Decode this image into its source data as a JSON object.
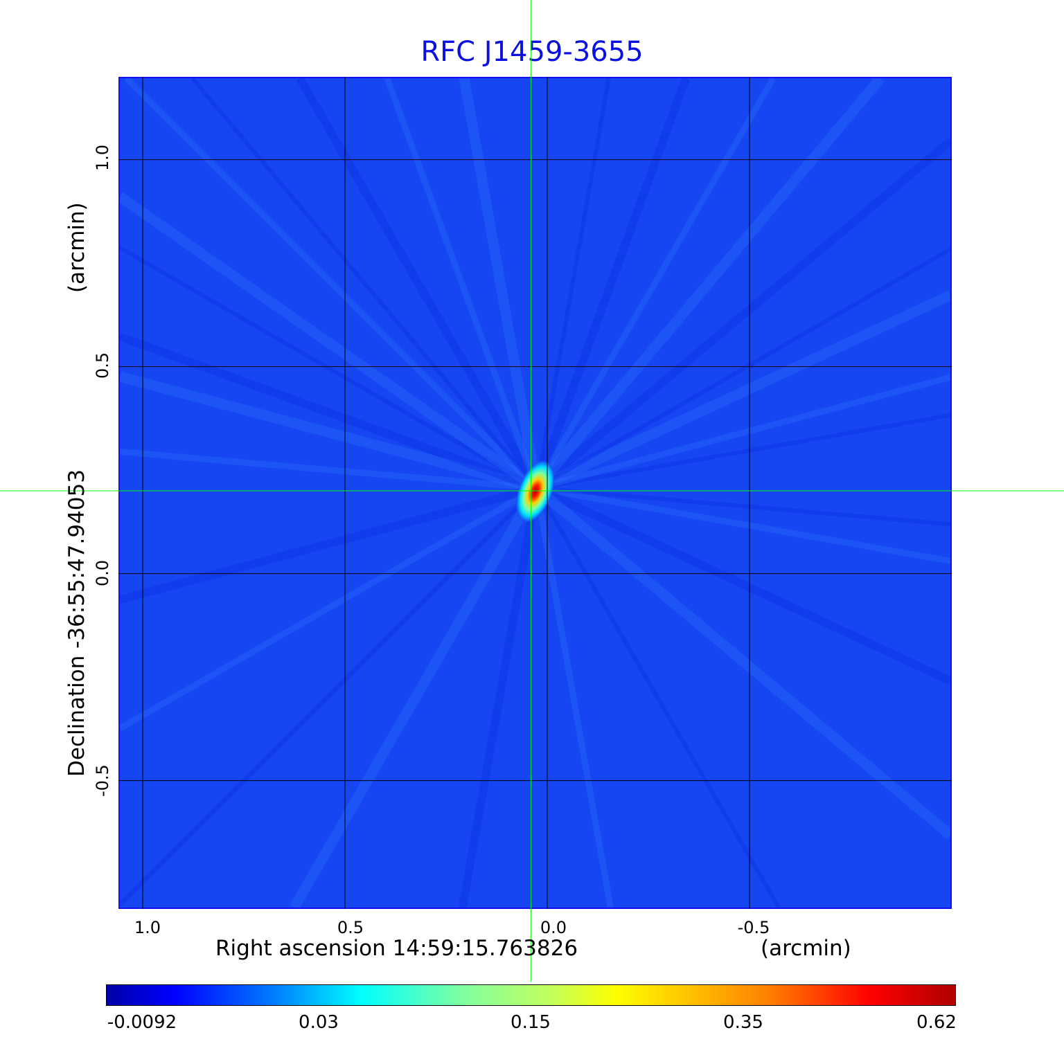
{
  "chart_data": {
    "type": "heatmap",
    "title": "RFC J1459-3655",
    "xlabel": "Right ascension  14:59:15.763826",
    "xunit": "(arcmin)",
    "ylabel": "Declination  -36:55:47.94053",
    "yunit": "(arcmin)",
    "xlim": [
      1.06,
      -1.0
    ],
    "ylim": [
      -0.81,
      1.2
    ],
    "xticks": [
      "1.0",
      "0.5",
      "0.0",
      "-0.5"
    ],
    "xtick_values": [
      1.0,
      0.5,
      0.0,
      -0.5
    ],
    "yticks": [
      "1.0",
      "0.5",
      "0.0",
      "-0.5"
    ],
    "ytick_values": [
      1.0,
      0.5,
      0.0,
      -0.5
    ],
    "grid": true,
    "colormap": "jet",
    "colorbar": {
      "ticks": [
        "-0.0092",
        "0.03",
        "0.15",
        "0.35",
        "0.62"
      ],
      "min": -0.0092,
      "max": 0.62,
      "placement": "bottom"
    },
    "crosshair": {
      "x": 0.04,
      "y": 0.2,
      "color": "#00ff00"
    },
    "peak": {
      "x": 0.03,
      "y": 0.21,
      "value": 0.62
    },
    "background_color": "#1546f2",
    "title_color": "#0a10e0"
  }
}
